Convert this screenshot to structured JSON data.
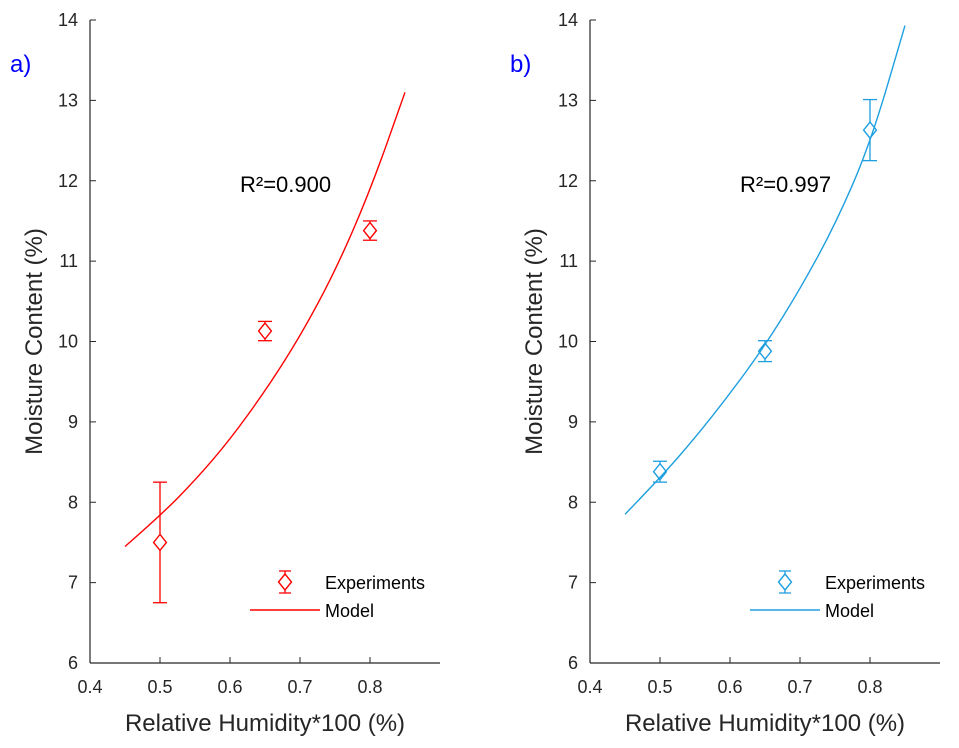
{
  "chart_data": [
    {
      "type": "scatter",
      "panel_label": "a)",
      "xlabel": "Relative Humidity*100 (%)",
      "ylabel": "Moisture Content (%)",
      "xlim": [
        0.4,
        0.9
      ],
      "ylim": [
        6,
        14
      ],
      "x_ticks": [
        "0.4",
        "0.5",
        "0.6",
        "0.7",
        "0.8"
      ],
      "y_ticks": [
        "6",
        "7",
        "8",
        "9",
        "10",
        "11",
        "12",
        "13",
        "14"
      ],
      "annotation": "R²=0.900",
      "color": "#ff0000",
      "grid": false,
      "legend_position": "bottom-right",
      "series": [
        {
          "name": "Experiments",
          "kind": "errorbar",
          "marker": "diamond",
          "x": [
            0.5,
            0.65,
            0.8
          ],
          "y": [
            7.5,
            10.13,
            11.38
          ],
          "err": [
            0.75,
            0.12,
            0.12
          ]
        },
        {
          "name": "Model",
          "kind": "line",
          "x": [
            0.45,
            0.5,
            0.55,
            0.6,
            0.65,
            0.7,
            0.75,
            0.8,
            0.85
          ],
          "y": [
            7.45,
            7.83,
            8.27,
            8.78,
            9.38,
            10.06,
            10.87,
            11.87,
            13.1
          ]
        }
      ]
    },
    {
      "type": "scatter",
      "panel_label": "b)",
      "xlabel": "Relative Humidity*100 (%)",
      "ylabel": "Moisture Content (%)",
      "xlim": [
        0.4,
        0.9
      ],
      "ylim": [
        6,
        14
      ],
      "x_ticks": [
        "0.4",
        "0.5",
        "0.6",
        "0.7",
        "0.8"
      ],
      "y_ticks": [
        "6",
        "7",
        "8",
        "9",
        "10",
        "11",
        "12",
        "13",
        "14"
      ],
      "annotation": "R²=0.997",
      "color": "#1e9fe0",
      "grid": false,
      "legend_position": "bottom-right",
      "series": [
        {
          "name": "Experiments",
          "kind": "errorbar",
          "marker": "diamond",
          "x": [
            0.5,
            0.65,
            0.8
          ],
          "y": [
            8.38,
            9.88,
            12.63
          ],
          "err": [
            0.13,
            0.13,
            0.38
          ]
        },
        {
          "name": "Model",
          "kind": "line",
          "x": [
            0.45,
            0.5,
            0.55,
            0.6,
            0.65,
            0.7,
            0.75,
            0.8,
            0.85
          ],
          "y": [
            7.85,
            8.3,
            8.8,
            9.35,
            9.95,
            10.65,
            11.45,
            12.45,
            13.93
          ]
        }
      ]
    }
  ],
  "theme": {
    "panel_label_color": "#0000ff",
    "axis_color": "#262626",
    "text_color": "#262626"
  }
}
